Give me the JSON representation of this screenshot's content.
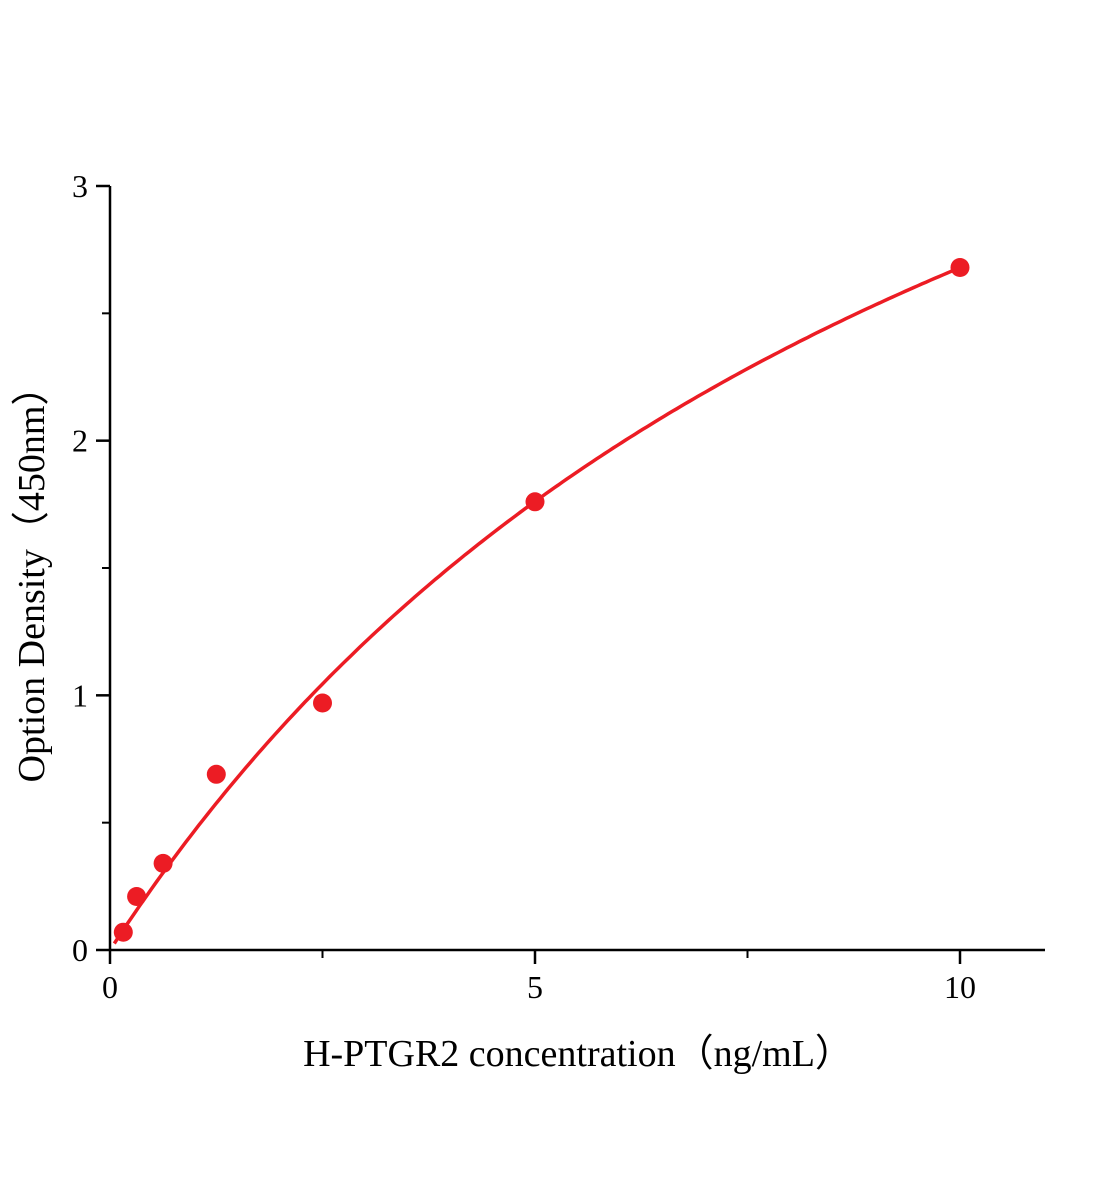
{
  "page": {
    "background": "#ffffff"
  },
  "chart_data": {
    "type": "scatter",
    "title": "",
    "xlabel": "H-PTGR2 concentration（ng/mL）",
    "ylabel": "Option Density（450nm）",
    "xlim": [
      0,
      11
    ],
    "ylim": [
      0,
      3
    ],
    "grid": false,
    "legend": "none",
    "x_ticks": [
      {
        "value": 0,
        "label": "0"
      },
      {
        "value": 5,
        "label": "5"
      },
      {
        "value": 10,
        "label": "10"
      }
    ],
    "x_minor_ticks": [
      2.5,
      7.5
    ],
    "y_ticks": [
      {
        "value": 0,
        "label": "0"
      },
      {
        "value": 1,
        "label": "1"
      },
      {
        "value": 2,
        "label": "2"
      },
      {
        "value": 3,
        "label": "3"
      }
    ],
    "y_minor_ticks": [
      0.5,
      1.5,
      2.5
    ],
    "points": [
      {
        "x": 0.156,
        "y": 0.07
      },
      {
        "x": 0.3125,
        "y": 0.21
      },
      {
        "x": 0.625,
        "y": 0.34
      },
      {
        "x": 1.25,
        "y": 0.69
      },
      {
        "x": 2.5,
        "y": 0.97
      },
      {
        "x": 5,
        "y": 1.76
      },
      {
        "x": 10,
        "y": 2.68
      }
    ],
    "fit_curve": {
      "model": "michaelis_menten",
      "vmax": 5.6,
      "km": 10.9,
      "x_start": 0.05,
      "x_end": 10
    },
    "colors": {
      "series": "#ec1c24",
      "axis": "#000000",
      "background": "#ffffff"
    }
  }
}
